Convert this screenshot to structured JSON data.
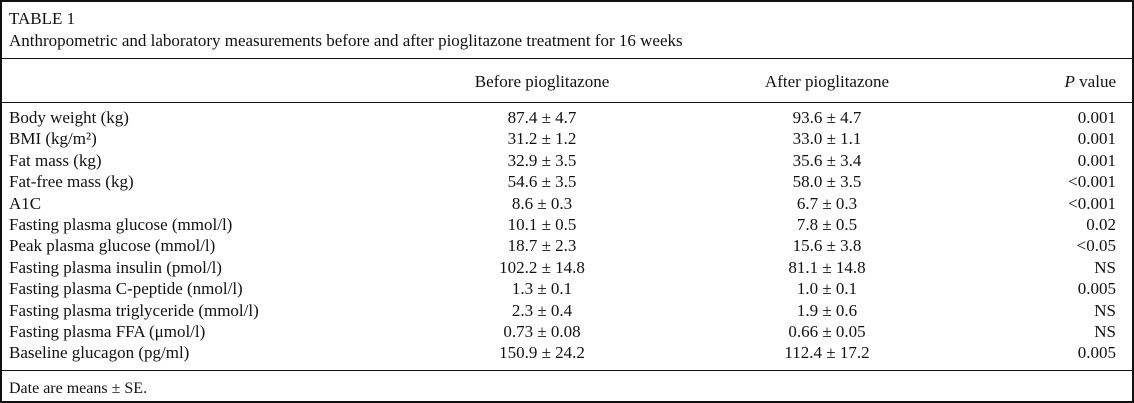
{
  "paper": {
    "table_label": "TABLE 1",
    "caption": "Anthropometric and laboratory measurements before and after pioglitazone treatment for 16 weeks",
    "footnote": "Date are means ± SE."
  },
  "table": {
    "columns": {
      "rowhead": "",
      "before": "Before pioglitazone",
      "after": "After pioglitazone",
      "p_italic": "P",
      "p_rest": " value"
    },
    "rows": [
      {
        "label": "Body weight (kg)",
        "before": "87.4 ± 4.7",
        "after": "93.6 ± 4.7",
        "p": "0.001"
      },
      {
        "label": "BMI (kg/m²)",
        "before": "31.2 ± 1.2",
        "after": "33.0 ± 1.1",
        "p": "0.001"
      },
      {
        "label": "Fat mass (kg)",
        "before": "32.9 ± 3.5",
        "after": "35.6 ± 3.4",
        "p": "0.001"
      },
      {
        "label": "Fat-free mass (kg)",
        "before": "54.6 ± 3.5",
        "after": "58.0 ± 3.5",
        "p": "<0.001"
      },
      {
        "label": "A1C",
        "before": "8.6 ± 0.3",
        "after": "6.7 ± 0.3",
        "p": "<0.001"
      },
      {
        "label": "Fasting plasma glucose (mmol/l)",
        "before": "10.1 ± 0.5",
        "after": "7.8 ± 0.5",
        "p": "0.02"
      },
      {
        "label": "Peak plasma glucose (mmol/l)",
        "before": "18.7 ± 2.3",
        "after": "15.6 ± 3.8",
        "p": "<0.05"
      },
      {
        "label": "Fasting plasma insulin (pmol/l)",
        "before": "102.2 ± 14.8",
        "after": "81.1 ± 14.8",
        "p": "NS"
      },
      {
        "label": "Fasting plasma C-peptide (nmol/l)",
        "before": "1.3 ± 0.1",
        "after": "1.0 ± 0.1",
        "p": "0.005"
      },
      {
        "label": "Fasting plasma triglyceride (mmol/l)",
        "before": "2.3 ± 0.4",
        "after": "1.9 ± 0.6",
        "p": "NS"
      },
      {
        "label": "Fasting plasma FFA (μmol/l)",
        "before": "0.73 ± 0.08",
        "after": "0.66 ± 0.05",
        "p": "NS"
      },
      {
        "label": "Baseline glucagon (pg/ml)",
        "before": "150.9 ± 24.2",
        "after": "112.4 ± 17.2",
        "p": "0.005"
      }
    ]
  }
}
